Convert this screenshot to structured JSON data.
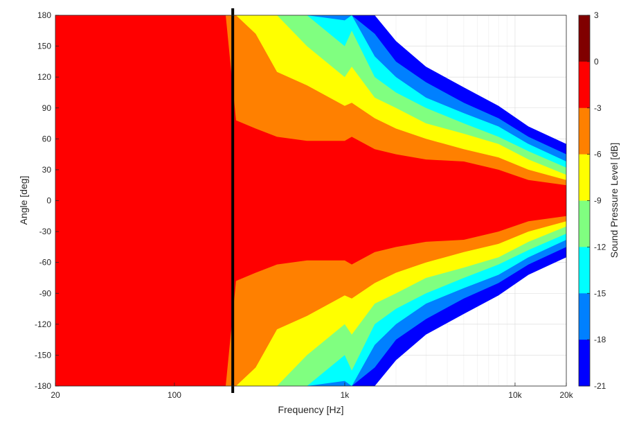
{
  "chart_data": {
    "type": "heatmap",
    "xlabel": "Frequency [Hz]",
    "ylabel": "Angle [deg]",
    "colorbar_label": "Sound Pressure Level [dB]",
    "x_scale": "log",
    "xlim": [
      20,
      20000
    ],
    "ylim": [
      -180,
      180
    ],
    "x_ticks": [
      {
        "value": 20,
        "label": "20"
      },
      {
        "value": 100,
        "label": "100"
      },
      {
        "value": 1000,
        "label": "1k"
      },
      {
        "value": 10000,
        "label": "10k"
      },
      {
        "value": 20000,
        "label": "20k"
      }
    ],
    "y_ticks": [
      180,
      150,
      120,
      90,
      60,
      30,
      0,
      -30,
      -60,
      -90,
      -120,
      -150,
      -180
    ],
    "grid": true,
    "colorbar": {
      "levels": [
        3,
        0,
        -3,
        -6,
        -9,
        -12,
        -15,
        -18,
        -21
      ],
      "colors": [
        "#800000",
        "#ff0000",
        "#ff8000",
        "#ffff00",
        "#80ff80",
        "#00ffff",
        "#0080ff",
        "#0000ff"
      ]
    },
    "marker_line_frequency_hz": 220,
    "contour_half_widths_deg": {
      "frequency_hz": [
        20,
        150,
        200,
        230,
        300,
        400,
        600,
        1000,
        1100,
        1500,
        2000,
        3000,
        5000,
        8000,
        12000,
        20000
      ],
      "-3": [
        180,
        180,
        180,
        78,
        70,
        62,
        58,
        58,
        62,
        50,
        45,
        40,
        38,
        30,
        20,
        15
      ],
      "-6": [
        180,
        180,
        180,
        180,
        162,
        125,
        112,
        92,
        95,
        80,
        70,
        60,
        50,
        42,
        30,
        20
      ],
      "-9": [
        180,
        180,
        180,
        180,
        180,
        180,
        150,
        120,
        130,
        100,
        90,
        75,
        65,
        55,
        40,
        25
      ],
      "-12": [
        180,
        180,
        180,
        180,
        180,
        180,
        180,
        150,
        165,
        120,
        105,
        90,
        75,
        62,
        48,
        32
      ],
      "-15": [
        180,
        180,
        180,
        180,
        180,
        180,
        180,
        175,
        180,
        140,
        120,
        100,
        85,
        72,
        55,
        38
      ],
      "-18": [
        180,
        180,
        180,
        180,
        180,
        180,
        180,
        180,
        180,
        162,
        135,
        115,
        95,
        80,
        62,
        45
      ],
      "-21": [
        180,
        180,
        180,
        180,
        180,
        180,
        180,
        180,
        180,
        180,
        155,
        130,
        110,
        92,
        72,
        55
      ]
    }
  }
}
